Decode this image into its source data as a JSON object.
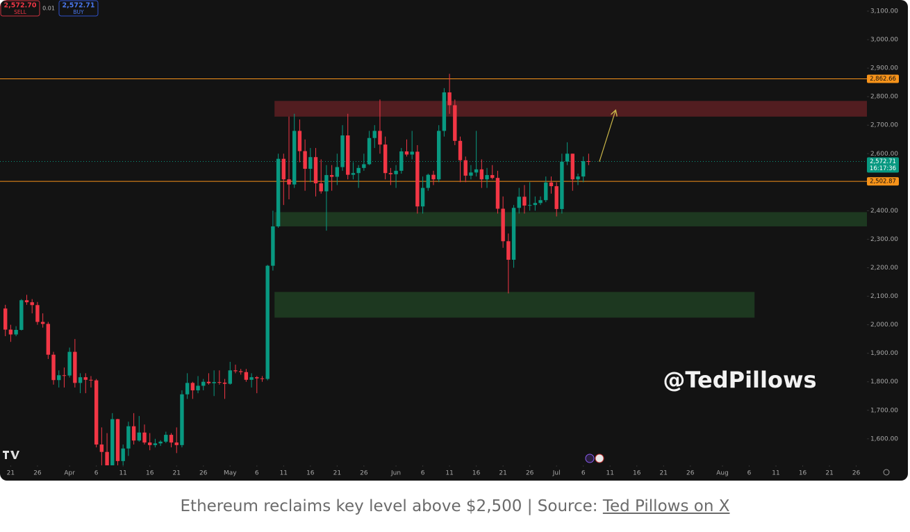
{
  "chart_data": {
    "type": "candlestick",
    "up_color": "#089981",
    "down_color": "#f23645",
    "x": [
      -1,
      0,
      1,
      2,
      3,
      4,
      5,
      6,
      7,
      8,
      9,
      10,
      11,
      12,
      13,
      14,
      15,
      16,
      17,
      18,
      19,
      20,
      21,
      22,
      23,
      24,
      25,
      26,
      27,
      28,
      29,
      30,
      31,
      32,
      33,
      34,
      35,
      36,
      37,
      38,
      39,
      40,
      41,
      42,
      43,
      44,
      45,
      46,
      47,
      48,
      49,
      50,
      51,
      52,
      53,
      54,
      55,
      56,
      57,
      58,
      59,
      60,
      61,
      62,
      63,
      64,
      65,
      66,
      67,
      68,
      69,
      70,
      71,
      72,
      73,
      74,
      75,
      76,
      77,
      78,
      79,
      80,
      81,
      82,
      83,
      84,
      85,
      86,
      87,
      88,
      89,
      90,
      91,
      92,
      93,
      94,
      95,
      96,
      97,
      98,
      99,
      100,
      101,
      102,
      103,
      104,
      105,
      106,
      107,
      108
    ],
    "open": [
      2057,
      1983,
      1966,
      1982,
      2086,
      2079,
      2069,
      2010,
      2003,
      1895,
      1806,
      1823,
      1822,
      1905,
      1796,
      1816,
      1807,
      1805,
      1580,
      1554,
      1475,
      1669,
      1522,
      1566,
      1644,
      1594,
      1622,
      1587,
      1578,
      1584,
      1590,
      1614,
      1587,
      1578,
      1756,
      1796,
      1770,
      1786,
      1800,
      1795,
      1799,
      1797,
      1793,
      1840,
      1837,
      1834,
      1807,
      1816,
      1812,
      1810,
      2207,
      2345,
      2582,
      2510,
      2492,
      2680,
      2609,
      2547,
      2588,
      2496,
      2468,
      2525,
      2519,
      2553,
      2664,
      2526,
      2532,
      2550,
      2563,
      2655,
      2680,
      2632,
      2532,
      2528,
      2540,
      2608,
      2597,
      2607,
      2415,
      2480,
      2526,
      2510,
      2680,
      2815,
      2770,
      2645,
      2577,
      2523,
      2534,
      2545,
      2510,
      2525,
      2515,
      2407,
      2293,
      2228,
      2410,
      2449,
      2418,
      2420,
      2427,
      2437,
      2499,
      2486,
      2406,
      2572,
      2600,
      2510,
      2520,
      2574
    ],
    "high": [
      2070,
      2000,
      1995,
      2090,
      2105,
      2090,
      2080,
      2040,
      2010,
      1905,
      1840,
      1850,
      1920,
      1950,
      1830,
      1830,
      1820,
      1810,
      1640,
      1620,
      1690,
      1670,
      1580,
      1660,
      1690,
      1680,
      1650,
      1620,
      1600,
      1595,
      1625,
      1620,
      1640,
      1770,
      1830,
      1800,
      1820,
      1810,
      1830,
      1840,
      1840,
      1810,
      1870,
      1860,
      1845,
      1845,
      1830,
      1820,
      1820,
      2210,
      2400,
      2600,
      2600,
      2730,
      2740,
      2720,
      2650,
      2620,
      2620,
      2580,
      2560,
      2560,
      2600,
      2700,
      2740,
      2570,
      2560,
      2600,
      2680,
      2700,
      2790,
      2660,
      2550,
      2560,
      2620,
      2650,
      2680,
      2630,
      2520,
      2530,
      2540,
      2700,
      2830,
      2880,
      2790,
      2660,
      2590,
      2560,
      2680,
      2580,
      2550,
      2560,
      2540,
      2450,
      2320,
      2420,
      2480,
      2490,
      2500,
      2450,
      2450,
      2520,
      2520,
      2500,
      2600,
      2640,
      2600,
      2530,
      2590,
      2600
    ],
    "low": [
      1960,
      1940,
      1960,
      1980,
      2070,
      2040,
      2000,
      1990,
      1880,
      1790,
      1780,
      1780,
      1815,
      1780,
      1760,
      1760,
      1780,
      1570,
      1410,
      1450,
      1390,
      1500,
      1505,
      1540,
      1580,
      1590,
      1580,
      1560,
      1570,
      1575,
      1585,
      1570,
      1550,
      1570,
      1740,
      1740,
      1760,
      1770,
      1790,
      1750,
      1790,
      1740,
      1790,
      1830,
      1825,
      1800,
      1780,
      1760,
      1800,
      1805,
      2190,
      2340,
      2420,
      2440,
      2480,
      2570,
      2470,
      2500,
      2450,
      2460,
      2330,
      2470,
      2490,
      2540,
      2510,
      2510,
      2480,
      2540,
      2560,
      2620,
      2600,
      2510,
      2490,
      2480,
      2530,
      2590,
      2580,
      2390,
      2390,
      2470,
      2490,
      2500,
      2660,
      2740,
      2630,
      2500,
      2500,
      2510,
      2520,
      2480,
      2480,
      2510,
      2390,
      2270,
      2110,
      2200,
      2390,
      2390,
      2400,
      2400,
      2420,
      2430,
      2460,
      2380,
      2390,
      2560,
      2470,
      2490,
      2500,
      2560
    ],
    "close": [
      1983,
      1966,
      1982,
      2086,
      2079,
      2069,
      2010,
      2003,
      1895,
      1806,
      1823,
      1822,
      1905,
      1796,
      1816,
      1807,
      1805,
      1580,
      1554,
      1475,
      1669,
      1522,
      1566,
      1644,
      1594,
      1622,
      1587,
      1578,
      1584,
      1590,
      1614,
      1587,
      1578,
      1756,
      1796,
      1770,
      1786,
      1800,
      1795,
      1799,
      1797,
      1793,
      1840,
      1837,
      1834,
      1807,
      1816,
      1812,
      1810,
      2207,
      2345,
      2582,
      2510,
      2492,
      2680,
      2609,
      2547,
      2588,
      2496,
      2468,
      2525,
      2519,
      2553,
      2664,
      2526,
      2532,
      2550,
      2563,
      2655,
      2680,
      2632,
      2532,
      2528,
      2540,
      2608,
      2597,
      2607,
      2415,
      2480,
      2526,
      2510,
      2680,
      2815,
      2770,
      2645,
      2577,
      2523,
      2534,
      2545,
      2510,
      2525,
      2515,
      2407,
      2293,
      2228,
      2410,
      2449,
      2418,
      2420,
      2427,
      2437,
      2499,
      2486,
      2406,
      2572,
      2600,
      2510,
      2520,
      2574,
      2573
    ],
    "xlim": [
      -2,
      160
    ],
    "xticks": [
      {
        "value": 0,
        "label": "21"
      },
      {
        "value": 5,
        "label": "26"
      },
      {
        "value": 11,
        "label": "Apr"
      },
      {
        "value": 16,
        "label": "6"
      },
      {
        "value": 21,
        "label": "11"
      },
      {
        "value": 26,
        "label": "16"
      },
      {
        "value": 31,
        "label": "21"
      },
      {
        "value": 36,
        "label": "26"
      },
      {
        "value": 41,
        "label": "May"
      },
      {
        "value": 46,
        "label": "6"
      },
      {
        "value": 51,
        "label": "11"
      },
      {
        "value": 56,
        "label": "16"
      },
      {
        "value": 61,
        "label": "21"
      },
      {
        "value": 66,
        "label": "26"
      },
      {
        "value": 72,
        "label": "Jun"
      },
      {
        "value": 77,
        "label": "6"
      },
      {
        "value": 82,
        "label": "11"
      },
      {
        "value": 87,
        "label": "16"
      },
      {
        "value": 92,
        "label": "21"
      },
      {
        "value": 97,
        "label": "26"
      },
      {
        "value": 102,
        "label": "Jul"
      },
      {
        "value": 107,
        "label": "6"
      },
      {
        "value": 112,
        "label": "11"
      },
      {
        "value": 117,
        "label": "16"
      },
      {
        "value": 122,
        "label": "21"
      },
      {
        "value": 127,
        "label": "26"
      },
      {
        "value": 133,
        "label": "Aug"
      },
      {
        "value": 138,
        "label": "6"
      },
      {
        "value": 143,
        "label": "11"
      },
      {
        "value": 148,
        "label": "16"
      },
      {
        "value": 153,
        "label": "21"
      },
      {
        "value": 158,
        "label": "26"
      }
    ],
    "ylim": [
      1507,
      3139
    ],
    "yticks": [
      {
        "value": 1600,
        "label": "1,600.00"
      },
      {
        "value": 1700,
        "label": "1,700.00"
      },
      {
        "value": 1800,
        "label": "1,800.00"
      },
      {
        "value": 1900,
        "label": "1,900.00"
      },
      {
        "value": 2000,
        "label": "2,000.00"
      },
      {
        "value": 2100,
        "label": "2,100.00"
      },
      {
        "value": 2200,
        "label": "2,200.00"
      },
      {
        "value": 2300,
        "label": "2,300.00"
      },
      {
        "value": 2400,
        "label": "2,400.00"
      },
      {
        "value": 2500,
        "label": "2,500.00"
      },
      {
        "value": 2600,
        "label": "2,600.00"
      },
      {
        "value": 2700,
        "label": "2,700.00"
      },
      {
        "value": 2800,
        "label": "2,800.00"
      },
      {
        "value": 2900,
        "label": "2,900.00"
      },
      {
        "value": 3000,
        "label": "3,000.00"
      },
      {
        "value": 3100,
        "label": "3,100.00"
      }
    ],
    "levels": [
      {
        "value": 2862.66,
        "label": "2,862.66",
        "color": "#f7931a"
      },
      {
        "value": 2502.87,
        "label": "2,502.87",
        "color": "#f7931a"
      }
    ],
    "current_price": {
      "value": 2572.71,
      "label": "2,572.71",
      "countdown": "16:17:36",
      "color": "#089981"
    },
    "zones": [
      {
        "x": [
          49.3,
          160
        ],
        "y": [
          2730,
          2785
        ],
        "color": "#5a1f22"
      },
      {
        "x": [
          49.3,
          160
        ],
        "y": [
          2345,
          2395
        ],
        "color": "#1f3d22"
      },
      {
        "x": [
          49.3,
          139
        ],
        "y": [
          2025,
          2115
        ],
        "color": "#1f3d22"
      }
    ],
    "arrow": {
      "x": [
        110,
        113
      ],
      "y": [
        2572,
        2750
      ],
      "color": "#c9b548"
    },
    "watermark": "@TedPillows",
    "order_panel": {
      "sell_price": "2,572.70",
      "sell_label": "SELL",
      "spread": "0.01",
      "buy_price": "2,572.71",
      "buy_label": "BUY"
    }
  },
  "caption": {
    "text": "Ethereum reclaims key level above $2,500 | Source: ",
    "link": "Ted Pillows on X"
  }
}
